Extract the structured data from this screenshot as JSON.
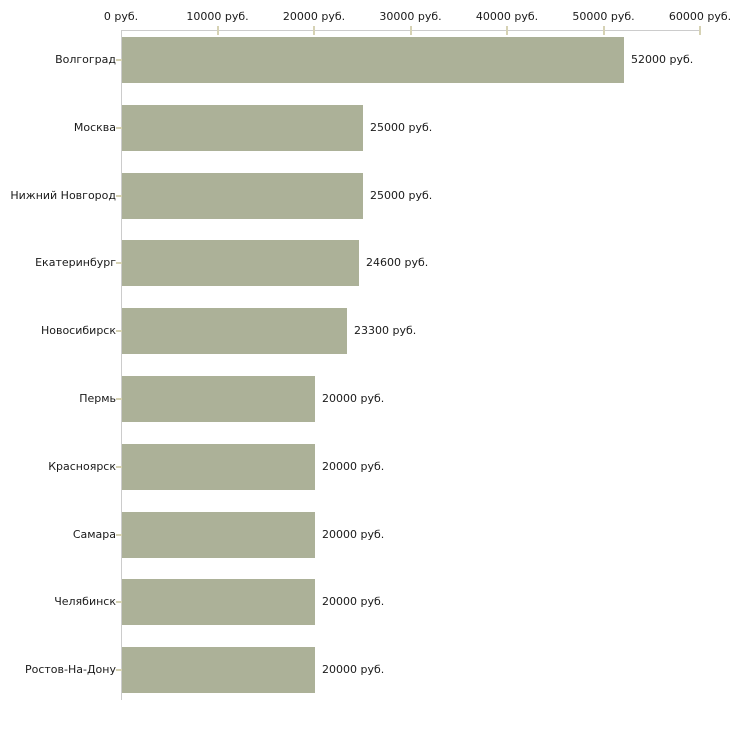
{
  "chart_data": {
    "type": "bar",
    "orientation": "horizontal",
    "title": "",
    "xlabel": "",
    "ylabel": "",
    "unit": "руб.",
    "categories": [
      "Волгоград",
      "Москва",
      "Нижний Новгород",
      "Екатеринбург",
      "Новосибирск",
      "Пермь",
      "Красноярск",
      "Самара",
      "Челябинск",
      "Ростов-На-Дону"
    ],
    "values": [
      52000,
      25000,
      25000,
      24600,
      23300,
      20000,
      20000,
      20000,
      20000,
      20000
    ],
    "value_labels": [
      "52000 руб.",
      "25000 руб.",
      "25000 руб.",
      "24600 руб.",
      "23300 руб.",
      "20000 руб.",
      "20000 руб.",
      "20000 руб.",
      "20000 руб.",
      "20000 руб."
    ],
    "x_ticks": [
      {
        "value": 0,
        "label": "0 руб."
      },
      {
        "value": 10000,
        "label": "10000 руб."
      },
      {
        "value": 20000,
        "label": "20000 руб."
      },
      {
        "value": 30000,
        "label": "30000 руб."
      },
      {
        "value": 40000,
        "label": "40000 руб."
      },
      {
        "value": 50000,
        "label": "50000 руб."
      },
      {
        "value": 60000,
        "label": "60000 руб."
      }
    ],
    "xlim": [
      0,
      60000
    ],
    "grid": false,
    "legend": "none",
    "colors": {
      "bar": "#acb198",
      "axis_line": "#cccccc",
      "tick_mark": "#d6d2b4",
      "text": "#1a1a1a",
      "background": "#ffffff"
    }
  }
}
